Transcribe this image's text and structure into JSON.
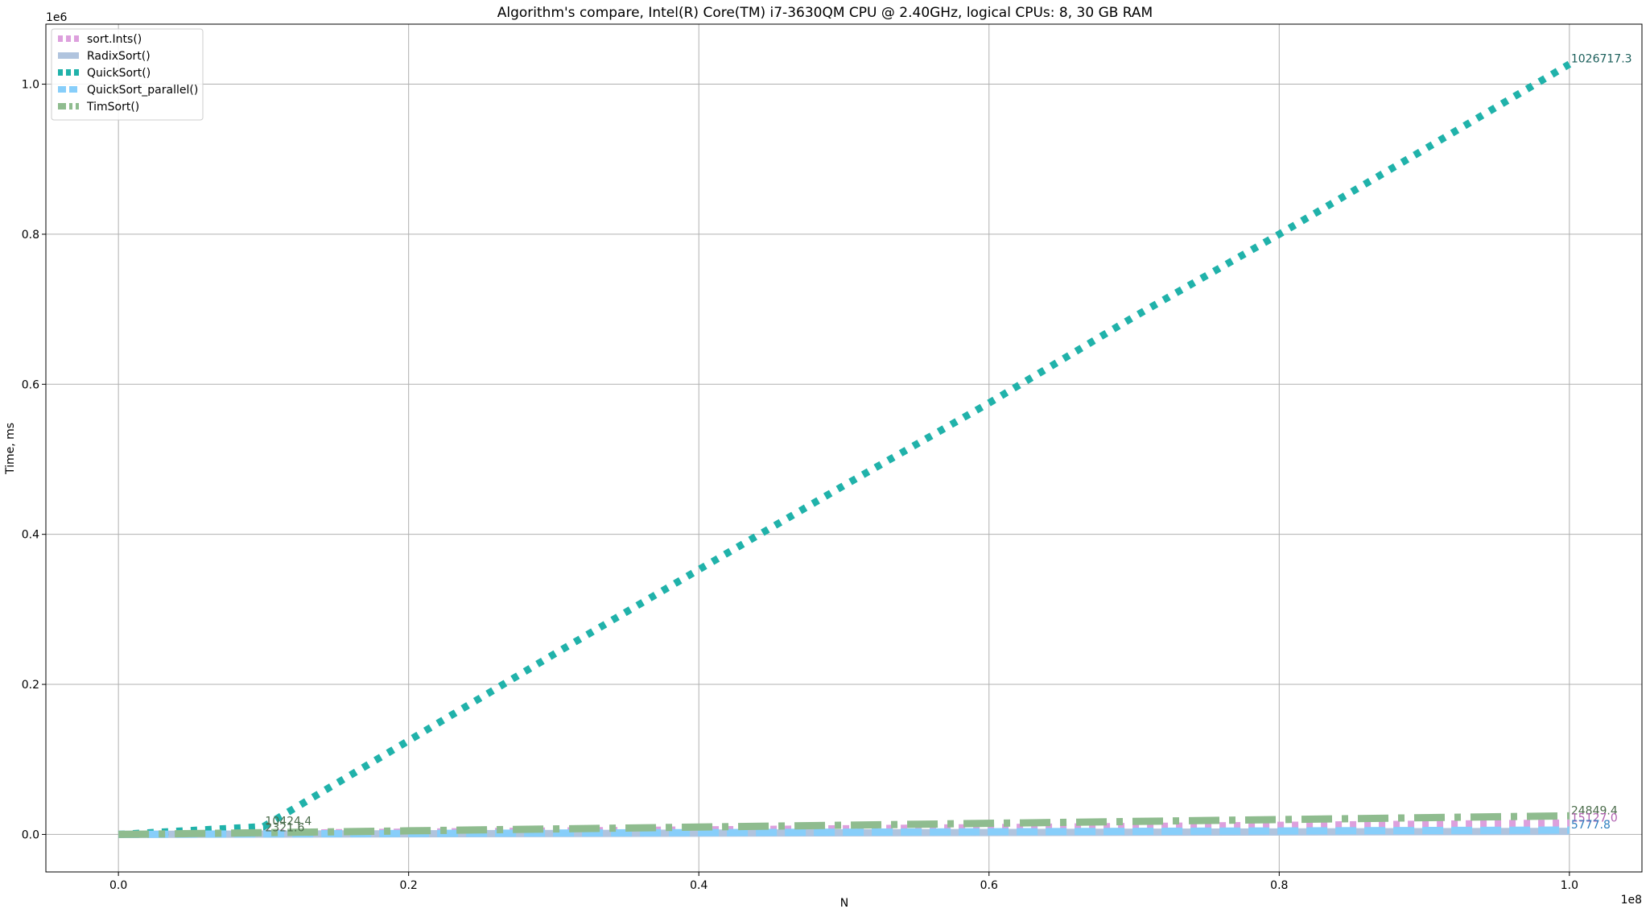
{
  "chart_data": {
    "type": "line",
    "title": "Algorithm's compare, Intel(R) Core(TM) i7-3630QM CPU @ 2.40GHz, logical CPUs: 8, 30 GB RAM",
    "xlabel": "N",
    "ylabel": "Time, ms",
    "x_offset_label": "1e8",
    "y_offset_label": "1e6",
    "xlim": [
      -0.05,
      1.05
    ],
    "ylim": [
      -0.05,
      1.08
    ],
    "xticks": [
      0.0,
      0.2,
      0.4,
      0.6,
      0.8,
      1.0
    ],
    "xtick_labels": [
      "0.0",
      "0.2",
      "0.4",
      "0.6",
      "0.8",
      "1.0"
    ],
    "yticks": [
      0.0,
      0.2,
      0.4,
      0.6,
      0.8,
      1.0
    ],
    "ytick_labels": [
      "0.0",
      "0.2",
      "0.4",
      "0.6",
      "0.8",
      "1.0"
    ],
    "grid": true,
    "legend_position": "top-left",
    "series": [
      {
        "name": "sort.Ints()",
        "color": "#dda0dd",
        "style": "dotted",
        "x": [
          0,
          0.1,
          1.0
        ],
        "y": [
          0,
          0.0015,
          0.0151
        ]
      },
      {
        "name": "RadixSort()",
        "color": "#b0c4de",
        "style": "solid",
        "x": [
          0,
          0.1,
          1.0
        ],
        "y": [
          0,
          0.0005,
          0.004
        ]
      },
      {
        "name": "QuickSort()",
        "color": "#20b2aa",
        "style": "dotted",
        "x": [
          0,
          0.1,
          0.2,
          0.3,
          0.4,
          0.5,
          0.6,
          0.7,
          0.8,
          0.9,
          1.0
        ],
        "y": [
          0,
          0.0104,
          0.125,
          0.24,
          0.353,
          0.465,
          0.575,
          0.69,
          0.8,
          0.913,
          1.0267
        ]
      },
      {
        "name": "QuickSort_parallel()",
        "color": "#87cefa",
        "style": "dashed",
        "x": [
          0,
          0.1,
          1.0
        ],
        "y": [
          0,
          0.0007,
          0.0058
        ]
      },
      {
        "name": "TimSort()",
        "color": "#8fbc8f",
        "style": "dashdot",
        "x": [
          0,
          0.1,
          1.0
        ],
        "y": [
          0,
          0.0023,
          0.0248
        ]
      }
    ],
    "annotations": [
      {
        "text": "1026717.3",
        "x": 1.0,
        "y": 1.0267,
        "color": "#1a5e5a"
      },
      {
        "text": "24849.4",
        "x": 1.0,
        "y": 0.0248,
        "color": "#4a6b4a"
      },
      {
        "text": "15127.0",
        "x": 1.0,
        "y": 0.0151,
        "color": "#b060b0"
      },
      {
        "text": "5777.8",
        "x": 1.0,
        "y": 0.0058,
        "color": "#2f7fbf"
      },
      {
        "text": "10424.4",
        "x": 0.1,
        "y": 0.0104,
        "color": "#4a6b4a"
      },
      {
        "text": "2321.6",
        "x": 0.1,
        "y": 0.0023,
        "color": "#4a6b4a"
      }
    ]
  }
}
